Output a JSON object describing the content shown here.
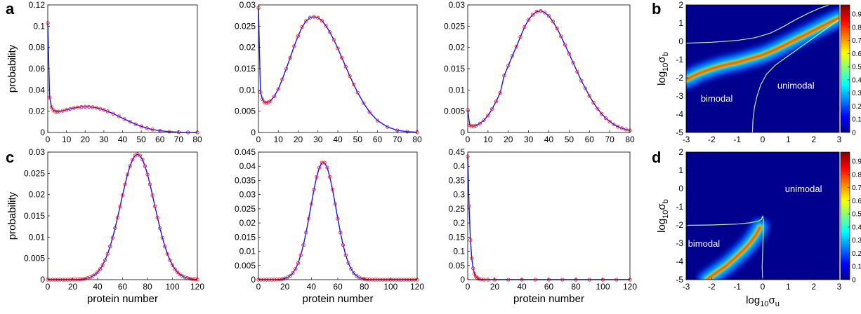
{
  "panel_labels": [
    "a",
    "b",
    "c",
    "d"
  ],
  "colors": {
    "pmf_line": "#1010ff",
    "pmf_marker": "#ff2020",
    "contour": "#b8f0a0",
    "region_text": "#ffffff"
  },
  "chart_data": [
    {
      "id": "a1",
      "type": "line",
      "panel": "a",
      "xlabel": "",
      "ylabel": "probability",
      "xlim": [
        0,
        80
      ],
      "ylim": [
        0,
        0.12
      ],
      "xticks": [
        "0",
        "10",
        "20",
        "30",
        "40",
        "50",
        "60",
        "70",
        "80"
      ],
      "yticks": [
        "0",
        "0.02",
        "0.04",
        "0.06",
        "0.08",
        "0.1",
        "0.12"
      ],
      "series": [
        {
          "x": [
            0,
            1,
            2,
            3,
            4,
            5,
            6,
            8,
            10,
            12,
            14,
            16,
            18,
            20,
            22,
            24,
            26,
            28,
            30,
            32,
            35,
            38,
            41,
            44,
            47,
            50,
            53,
            56,
            60,
            65,
            70,
            75,
            80
          ],
          "y": [
            0.103,
            0.033,
            0.024,
            0.021,
            0.0197,
            0.0195,
            0.0197,
            0.0204,
            0.0213,
            0.0222,
            0.023,
            0.0236,
            0.024,
            0.0242,
            0.0241,
            0.0238,
            0.0232,
            0.0223,
            0.0212,
            0.0199,
            0.0177,
            0.0152,
            0.0126,
            0.0101,
            0.0078,
            0.0058,
            0.0041,
            0.0028,
            0.0016,
            0.0008,
            0.0003,
            0.0001,
            5e-05
          ]
        }
      ]
    },
    {
      "id": "a2",
      "type": "line",
      "panel": "a",
      "xlabel": "",
      "ylabel": "",
      "xlim": [
        0,
        80
      ],
      "ylim": [
        0,
        0.03
      ],
      "xticks": [
        "0",
        "10",
        "20",
        "30",
        "40",
        "50",
        "60",
        "70",
        "80"
      ],
      "yticks": [
        "0",
        "0.005",
        "0.01",
        "0.015",
        "0.02",
        "0.025",
        "0.03"
      ],
      "series": [
        {
          "x": [
            0,
            1,
            2,
            3,
            4,
            5,
            6,
            8,
            10,
            12,
            14,
            16,
            18,
            20,
            22,
            24,
            26,
            28,
            30,
            32,
            34,
            36,
            38,
            40,
            42,
            44,
            46,
            48,
            50,
            53,
            56,
            60,
            65,
            70,
            75,
            80
          ],
          "y": [
            0.0293,
            0.0095,
            0.0078,
            0.0071,
            0.007,
            0.0071,
            0.0074,
            0.0085,
            0.0102,
            0.0125,
            0.015,
            0.0176,
            0.0203,
            0.0227,
            0.0248,
            0.0262,
            0.027,
            0.0272,
            0.027,
            0.0263,
            0.0251,
            0.0236,
            0.0218,
            0.0198,
            0.0176,
            0.0155,
            0.0133,
            0.0113,
            0.0094,
            0.0069,
            0.0048,
            0.0028,
            0.0013,
            0.0005,
            0.0002,
            5e-05
          ]
        }
      ]
    },
    {
      "id": "a3",
      "type": "line",
      "panel": "a",
      "xlabel": "",
      "ylabel": "",
      "xlim": [
        0,
        80
      ],
      "ylim": [
        0,
        0.03
      ],
      "xticks": [
        "0",
        "10",
        "20",
        "30",
        "40",
        "50",
        "60",
        "70",
        "80"
      ],
      "yticks": [
        "0",
        "0.005",
        "0.01",
        "0.015",
        "0.02",
        "0.025",
        "0.03"
      ],
      "series": [
        {
          "x": [
            0,
            1,
            2,
            3,
            4,
            6,
            8,
            10,
            12,
            14,
            16,
            18,
            20,
            22,
            24,
            26,
            28,
            30,
            32,
            34,
            36,
            38,
            40,
            42,
            44,
            46,
            48,
            50,
            52,
            54,
            56,
            58,
            60,
            62,
            64,
            66,
            68,
            70,
            72,
            74,
            76,
            78,
            80
          ],
          "y": [
            0.0053,
            0.0017,
            0.0015,
            0.0015,
            0.0016,
            0.0021,
            0.0029,
            0.004,
            0.0055,
            0.0073,
            0.0093,
            0.0134,
            0.0157,
            0.018,
            0.0202,
            0.0225,
            0.0248,
            0.0265,
            0.0277,
            0.0284,
            0.0286,
            0.0282,
            0.0274,
            0.0261,
            0.0245,
            0.0226,
            0.0206,
            0.0185,
            0.0164,
            0.0143,
            0.0122,
            0.0104,
            0.0086,
            0.007,
            0.0056,
            0.0044,
            0.0034,
            0.0026,
            0.0019,
            0.0014,
            0.001,
            0.0007,
            0.0005
          ]
        }
      ]
    },
    {
      "id": "b",
      "type": "heatmap",
      "panel": "b",
      "xlabel": "",
      "ylabel": "log10σb",
      "xlim": [
        -3,
        3
      ],
      "ylim": [
        -5,
        2
      ],
      "xticks": [
        "-3",
        "-2",
        "-1",
        "0",
        "1",
        "2",
        "3"
      ],
      "yticks": [
        "-5",
        "-4",
        "-3",
        "-2",
        "-1",
        "0",
        "1",
        "2"
      ],
      "colorbar_ticks": [
        "0",
        "0.1",
        "0.2",
        "0.3",
        "0.4",
        "0.5",
        "0.6",
        "0.7",
        "0.8",
        "0.9"
      ],
      "annotations": [
        "bimodal",
        "unimodal"
      ],
      "ridge": {
        "x": [
          -3,
          -2.5,
          -2,
          -1.5,
          -1,
          -0.5,
          0,
          0.5,
          1,
          1.5,
          2,
          2.5,
          3
        ],
        "y": [
          -2.1,
          -1.75,
          -1.5,
          -1.3,
          -1.15,
          -0.95,
          -0.75,
          -0.45,
          -0.1,
          0.25,
          0.6,
          0.95,
          1.3
        ]
      },
      "contours": [
        {
          "x": [
            -3,
            -2,
            -1,
            -0.3,
            0.3,
            0.8,
            1.3,
            1.8,
            2.2,
            2.6
          ],
          "y": [
            -0.1,
            -0.05,
            0.05,
            0.2,
            0.45,
            0.8,
            1.2,
            1.55,
            1.8,
            2.0
          ]
        },
        {
          "x": [
            -0.4,
            -0.38,
            -0.32,
            -0.22,
            -0.08,
            0.15,
            0.5,
            0.9,
            1.4,
            2.0,
            2.5,
            3.0
          ],
          "y": [
            -5,
            -4.3,
            -3.6,
            -3.0,
            -2.4,
            -1.8,
            -1.3,
            -0.9,
            -0.4,
            0.2,
            0.7,
            1.2
          ]
        }
      ]
    },
    {
      "id": "c1",
      "type": "line",
      "panel": "c",
      "xlabel": "protein number",
      "ylabel": "probability",
      "xlim": [
        0,
        120
      ],
      "ylim": [
        0,
        0.03
      ],
      "xticks": [
        "0",
        "20",
        "40",
        "60",
        "80",
        "100",
        "120"
      ],
      "yticks": [
        "0",
        "0.005",
        "0.01",
        "0.015",
        "0.02",
        "0.025",
        "0.03"
      ],
      "series": [
        {
          "mean": 72,
          "sd": 13.5,
          "peak": 0.0295,
          "start": 0,
          "end": 120,
          "step": 2
        }
      ]
    },
    {
      "id": "c2",
      "type": "line",
      "panel": "c",
      "xlabel": "protein number",
      "ylabel": "",
      "xlim": [
        0,
        120
      ],
      "ylim": [
        0,
        0.045
      ],
      "xticks": [
        "0",
        "20",
        "40",
        "60",
        "80",
        "100",
        "120"
      ],
      "yticks": [
        "0",
        "0.005",
        "0.01",
        "0.015",
        "0.02",
        "0.025",
        "0.03",
        "0.035",
        "0.04",
        "0.045"
      ],
      "series": [
        {
          "mean": 49,
          "sd": 9.6,
          "peak": 0.0415,
          "start": 0,
          "end": 120,
          "step": 2
        }
      ]
    },
    {
      "id": "c3",
      "type": "line",
      "panel": "c",
      "xlabel": "protein number",
      "ylabel": "",
      "xlim": [
        0,
        120
      ],
      "ylim": [
        0,
        0.45
      ],
      "xticks": [
        "0",
        "20",
        "40",
        "60",
        "80",
        "100",
        "120"
      ],
      "yticks": [
        "0",
        "0.05",
        "0.1",
        "0.15",
        "0.2",
        "0.25",
        "0.3",
        "0.35",
        "0.4",
        "0.45"
      ],
      "series": [
        {
          "x": [
            0,
            1,
            2,
            3,
            4,
            5,
            6,
            7,
            8,
            10,
            12,
            15,
            20,
            30,
            40,
            50,
            60,
            70,
            80,
            90,
            100,
            110,
            120
          ],
          "y": [
            0.435,
            0.26,
            0.14,
            0.075,
            0.04,
            0.021,
            0.011,
            0.006,
            0.003,
            0.001,
            0.0003,
            0.0001,
            0,
            0,
            0,
            0,
            0,
            0,
            0,
            0,
            0,
            0,
            0
          ]
        }
      ]
    },
    {
      "id": "d",
      "type": "heatmap",
      "panel": "d",
      "xlabel": "log10σu",
      "ylabel": "log10σb",
      "xlim": [
        -3,
        3
      ],
      "ylim": [
        -5,
        2
      ],
      "xticks": [
        "-3",
        "-2",
        "-1",
        "0",
        "1",
        "2",
        "3"
      ],
      "yticks": [
        "-5",
        "-4",
        "-3",
        "-2",
        "-1",
        "0",
        "1",
        "2"
      ],
      "colorbar_ticks": [
        "0",
        "0.1",
        "0.2",
        "0.3",
        "0.4",
        "0.5",
        "0.6",
        "0.7",
        "0.8",
        "0.9"
      ],
      "annotations": [
        "bimodal",
        "unimodal"
      ],
      "ridge": {
        "x": [
          -2.2,
          -1.8,
          -1.4,
          -1.0,
          -0.7,
          -0.45,
          -0.25,
          -0.1
        ],
        "y": [
          -5,
          -4.6,
          -4.2,
          -3.7,
          -3.3,
          -2.9,
          -2.5,
          -2.1
        ]
      },
      "contours": [
        {
          "x": [
            -3,
            -2,
            -1,
            -0.5,
            -0.2,
            -0.05,
            0.0,
            0.03,
            0.02,
            0.0,
            -0.02,
            0.0
          ],
          "y": [
            -2.02,
            -2.0,
            -1.95,
            -1.88,
            -1.8,
            -1.7,
            -1.5,
            -1.75,
            -2.5,
            -3.5,
            -4.3,
            -5
          ]
        }
      ]
    }
  ]
}
